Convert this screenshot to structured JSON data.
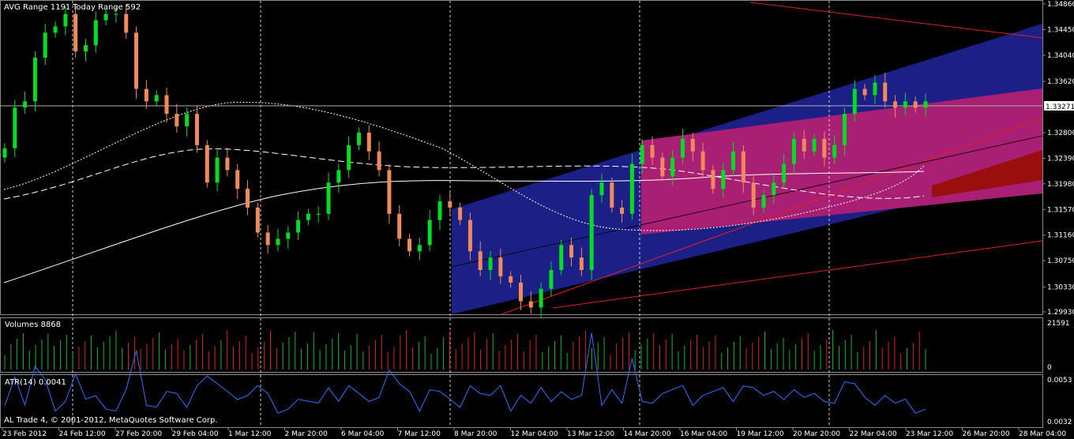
{
  "header": {
    "avg_range": "AVG Range 1191",
    "today_range": "Today Range 592"
  },
  "footer": {
    "copyright": "AL Trade 4, © 2001-2012, MetaQuotes Software Corp."
  },
  "colors": {
    "background": "#000000",
    "bull_candle": "#00dd22",
    "bear_candle": "#f08a5d",
    "channel_outer": "#1c1f86",
    "channel_inner": "#a81f74",
    "channel_core": "#9a0e0e",
    "trendline": "#e02020",
    "atr_line": "#2f6fff",
    "vol_up": "#00bb22",
    "vol_down": "#dd2020",
    "grid_sep": "#8a8a8a"
  },
  "chart_data": [
    {
      "type": "candlestick",
      "instrument_panel": "price",
      "ylim": [
        1.2993,
        1.3486
      ],
      "y_ticks": [
        "1.34860",
        "1.34450",
        "1.34040",
        "1.33620",
        "1.33271",
        "1.32800",
        "1.32390",
        "1.31980",
        "1.31570",
        "1.31160",
        "1.30750",
        "1.30330",
        "1.29930"
      ],
      "current_price": "1.33271",
      "x_ticks": [
        "23 Feb 2012",
        "24 Feb 12:00",
        "27 Feb 20:00",
        "29 Feb 04:00",
        "1 Mar 12:00",
        "2 Mar 20:00",
        "6 Mar 04:00",
        "7 Mar 12:00",
        "8 Mar 20:00",
        "12 Mar 04:00",
        "13 Mar 12:00",
        "14 Mar 20:00",
        "16 Mar 04:00",
        "19 Mar 12:00",
        "20 Mar 20:00",
        "22 Mar 04:00",
        "23 Mar 12:00",
        "26 Mar 20:00",
        "28 Mar 04:00"
      ],
      "closes": [
        1.3255,
        1.332,
        1.333,
        1.34,
        1.344,
        1.345,
        1.347,
        1.341,
        1.342,
        1.346,
        1.347,
        1.347,
        1.344,
        1.335,
        1.333,
        1.334,
        1.331,
        1.329,
        1.331,
        1.326,
        1.32,
        1.324,
        1.322,
        1.319,
        1.316,
        1.312,
        1.31,
        1.311,
        1.312,
        1.314,
        1.315,
        1.315,
        1.32,
        1.322,
        1.326,
        1.328,
        1.325,
        1.322,
        1.315,
        1.311,
        1.309,
        1.31,
        1.314,
        1.317,
        1.316,
        1.314,
        1.309,
        1.306,
        1.308,
        1.305,
        1.304,
        1.301,
        1.3,
        1.303,
        1.306,
        1.31,
        1.308,
        1.306,
        1.318,
        1.32,
        1.316,
        1.315,
        1.323,
        1.326,
        1.324,
        1.321,
        1.324,
        1.327,
        1.325,
        1.322,
        1.319,
        1.322,
        1.325,
        1.32,
        1.316,
        1.318,
        1.32,
        1.323,
        1.327,
        1.325,
        1.327,
        1.324,
        1.326,
        1.331,
        1.335,
        1.334,
        1.336,
        1.333,
        1.332,
        1.333,
        1.332,
        1.333
      ]
    },
    {
      "type": "bar",
      "instrument_panel": "volume",
      "title": "Volumes 8868",
      "y_ticks": [
        "21591",
        "0"
      ],
      "ylim": [
        0,
        21591
      ]
    },
    {
      "type": "line",
      "instrument_panel": "indicator",
      "title": "ATR(14) 0.0041",
      "y_ticks": [
        "0.0053",
        "0.0032"
      ],
      "ylim": [
        0.0029,
        0.0056
      ]
    }
  ]
}
